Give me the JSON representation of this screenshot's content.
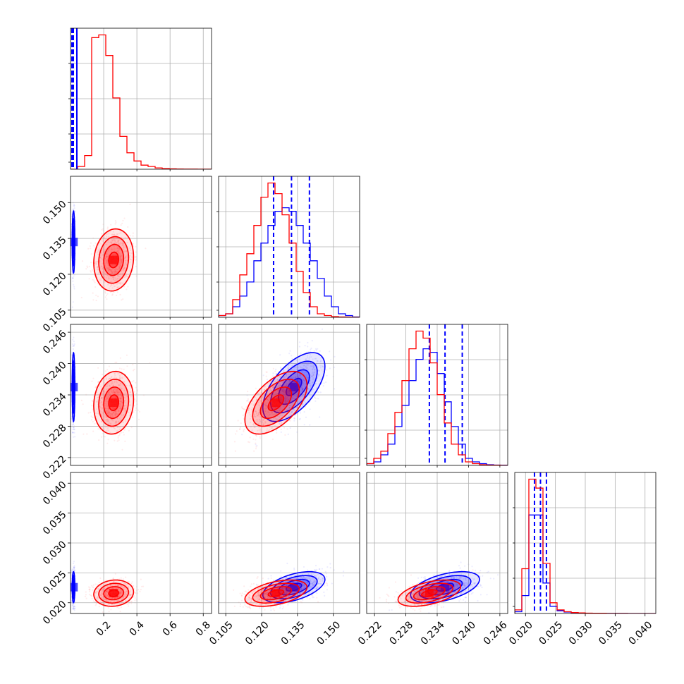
{
  "chart_data": {
    "type": "scatter",
    "layout": "corner",
    "grid": true,
    "parameters": [
      {
        "range": [
          0.0,
          0.85
        ],
        "ticks": [
          0.2,
          0.4,
          0.6,
          0.8
        ],
        "tick_labels": [
          "0.2",
          "0.4",
          "0.6",
          "0.8"
        ]
      },
      {
        "range": [
          0.102,
          0.161
        ],
        "ticks": [
          0.105,
          0.12,
          0.135,
          0.15
        ],
        "tick_labels": [
          "0.105",
          "0.120",
          "0.135",
          "0.150"
        ]
      },
      {
        "range": [
          0.2205,
          0.2475
        ],
        "ticks": [
          0.222,
          0.228,
          0.234,
          0.24,
          0.246
        ],
        "tick_labels": [
          "0.222",
          "0.228",
          "0.234",
          "0.240",
          "0.246"
        ]
      },
      {
        "range": [
          0.0182,
          0.0418
        ],
        "ticks": [
          0.02,
          0.025,
          0.03,
          0.035,
          0.04
        ],
        "tick_labels": [
          "0.020",
          "0.025",
          "0.030",
          "0.035",
          "0.040"
        ]
      }
    ],
    "series": [
      {
        "color": "#0000ff",
        "means": [
          0.018,
          0.1335,
          0.2355,
          0.0226
        ],
        "sds": [
          0.004,
          0.0065,
          0.0033,
          0.0013
        ],
        "corr": [
          [
            1,
            0,
            0,
            0
          ],
          [
            0,
            1,
            0.6,
            0.5
          ],
          [
            0,
            0.6,
            1,
            0.5
          ],
          [
            0,
            0.5,
            0.5,
            1
          ]
        ],
        "quantiles": [
          [
            0.014,
            0.018,
            0.022
          ],
          [
            0.125,
            0.1325,
            0.14
          ],
          [
            0.2325,
            0.2355,
            0.2388
          ],
          [
            0.0215,
            0.0225,
            0.0235
          ]
        ],
        "hist1d": [
          [],
          [
            0.005,
            0.01,
            0.03,
            0.06,
            0.1,
            0.16,
            0.21,
            0.26,
            0.3,
            0.31,
            0.3,
            0.26,
            0.21,
            0.16,
            0.11,
            0.06,
            0.03,
            0.01,
            0.005,
            0.001
          ],
          [
            0.005,
            0.01,
            0.03,
            0.06,
            0.11,
            0.17,
            0.24,
            0.3,
            0.33,
            0.32,
            0.26,
            0.18,
            0.11,
            0.06,
            0.02,
            0.01,
            0.005,
            0.002,
            0.001,
            0.0005
          ],
          [
            0.01,
            0.1,
            0.55,
            0.55,
            0.17,
            0.04,
            0.015,
            0.008,
            0.004,
            0.002,
            0.001,
            0.001,
            0.0005,
            0.0005,
            0.0003,
            0.0002,
            0.0001,
            0.0001,
            0.0001,
            0.0001
          ]
        ]
      },
      {
        "color": "#ff0000",
        "means": [
          0.26,
          0.126,
          0.2325,
          0.0216
        ],
        "sds": [
          0.06,
          0.0065,
          0.003,
          0.0011
        ],
        "corr": [
          [
            1,
            0.1,
            0.1,
            0.1
          ],
          [
            0.1,
            1,
            0.55,
            0.45
          ],
          [
            0.1,
            0.55,
            1,
            0.5
          ],
          [
            0.1,
            0.45,
            0.5,
            1
          ]
        ],
        "quantiles": [],
        "hist1d": [
          [
            0.0,
            0.02,
            0.1,
            0.96,
            0.98,
            0.83,
            0.52,
            0.24,
            0.12,
            0.06,
            0.03,
            0.02,
            0.01,
            0.005,
            0.003,
            0.002,
            0.001,
            0.001,
            0.0005,
            0.0005
          ],
          [
            0.005,
            0.01,
            0.05,
            0.12,
            0.18,
            0.26,
            0.34,
            0.38,
            0.35,
            0.29,
            0.21,
            0.13,
            0.07,
            0.03,
            0.01,
            0.005,
            0.002,
            0.001,
            0.0005,
            0.0002
          ],
          [
            0.005,
            0.02,
            0.04,
            0.09,
            0.15,
            0.24,
            0.33,
            0.38,
            0.36,
            0.29,
            0.2,
            0.12,
            0.06,
            0.03,
            0.01,
            0.005,
            0.002,
            0.001,
            0.0005,
            0.0002
          ],
          [
            0.02,
            0.25,
            0.75,
            0.7,
            0.28,
            0.06,
            0.02,
            0.01,
            0.005,
            0.003,
            0.002,
            0.001,
            0.001,
            0.0005,
            0.0003,
            0.0002,
            0.0001,
            0.0001,
            0.0001,
            0.0001
          ]
        ]
      }
    ]
  }
}
